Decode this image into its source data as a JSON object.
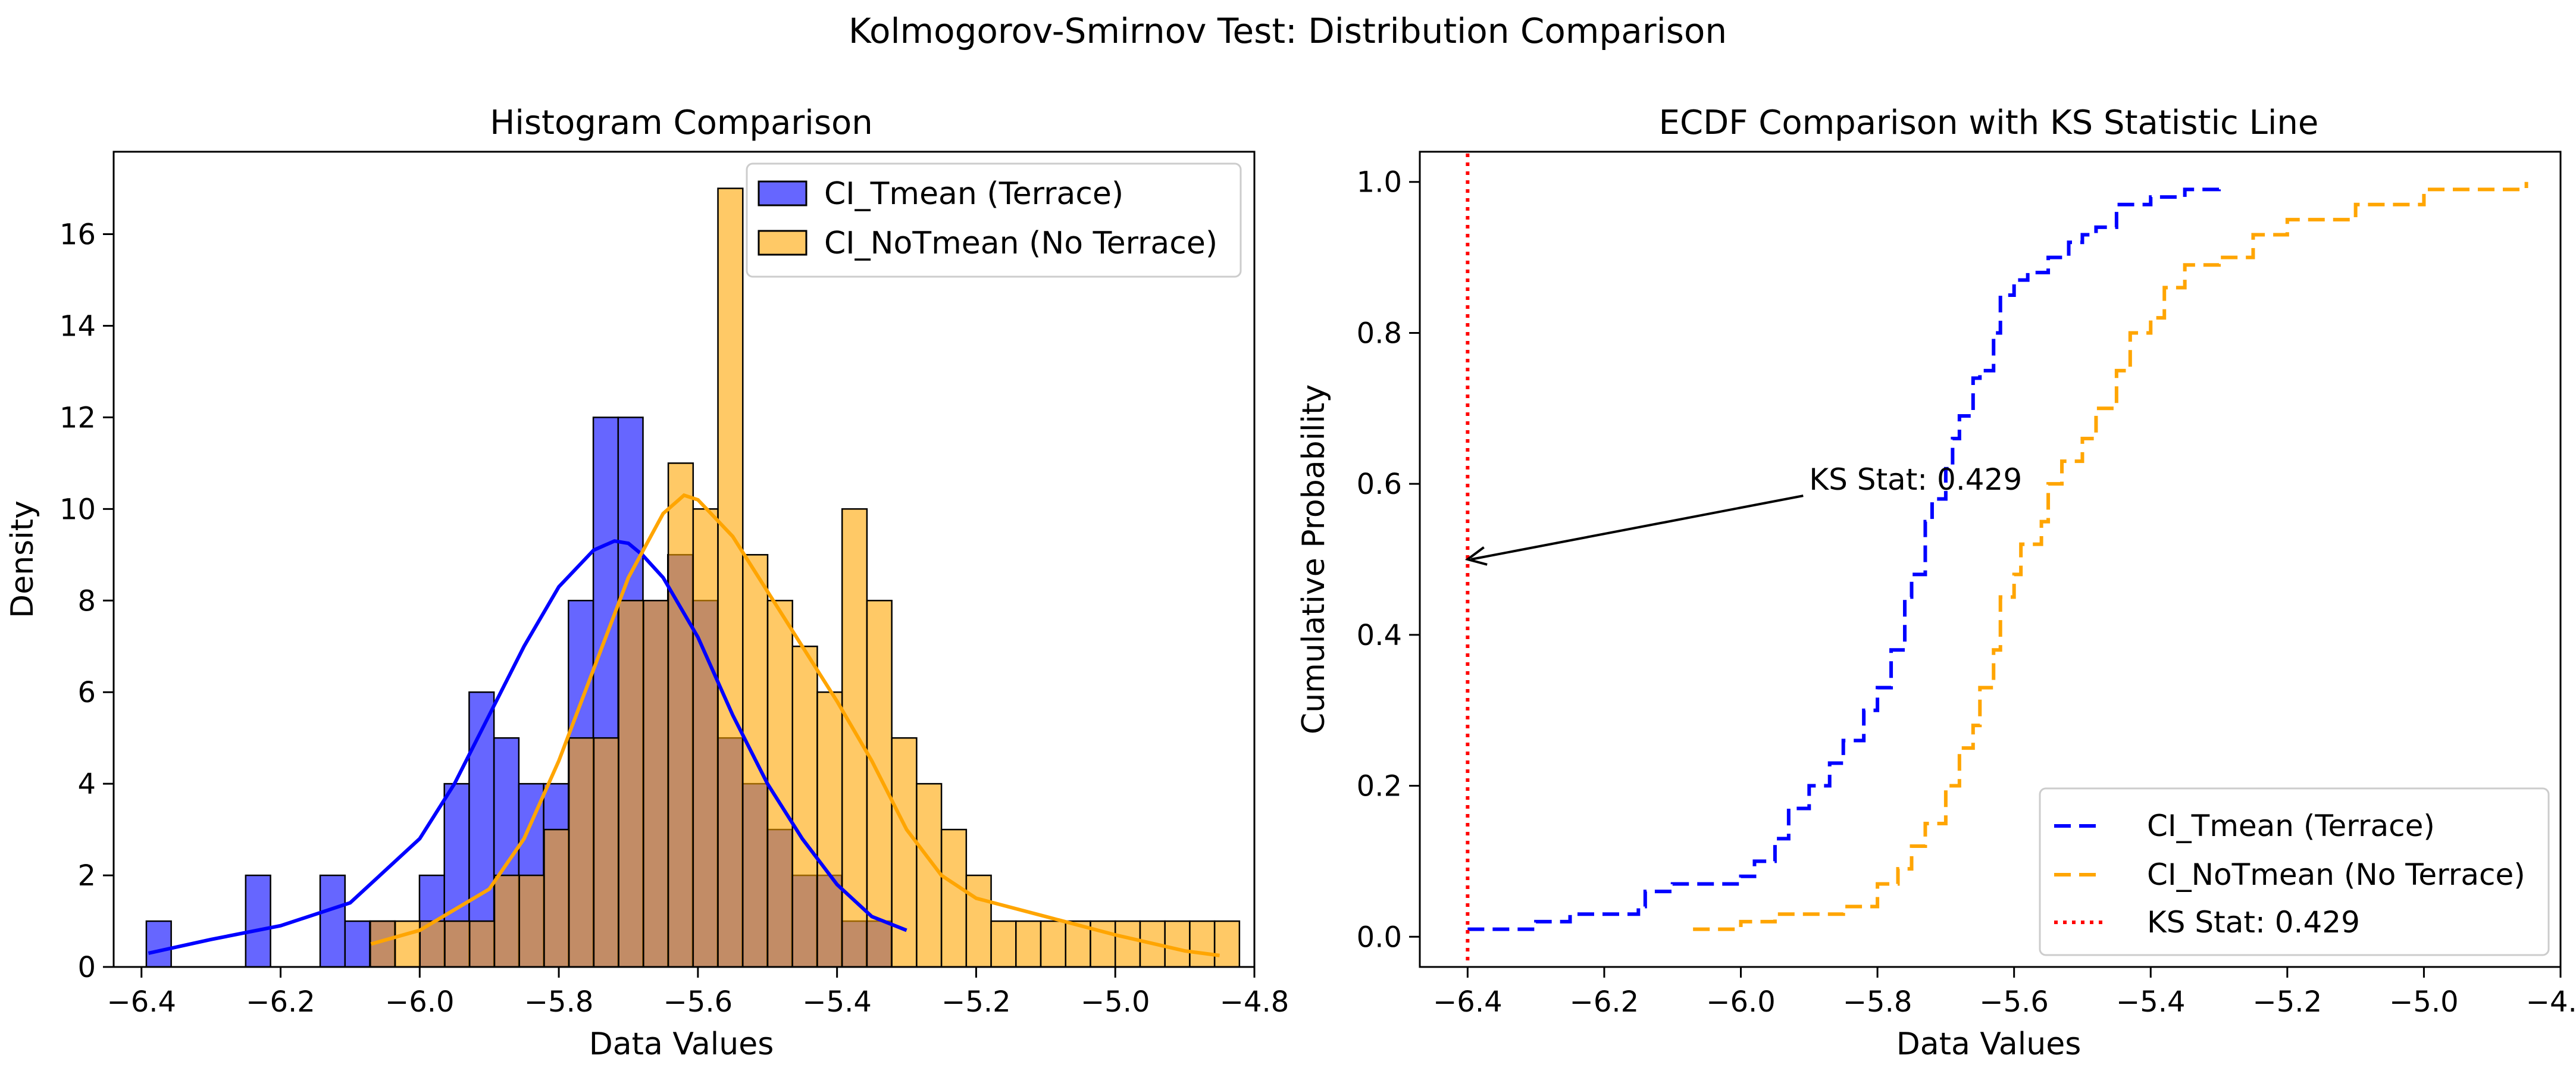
{
  "suptitle": "Kolmogorov-Smirnov Test: Distribution Comparison",
  "colors": {
    "terrace": "#0000ff",
    "no_terrace": "#ffa500",
    "overlap": "#b98a73",
    "ks_line": "#ff0000",
    "edge": "#000000"
  },
  "chart_data": [
    {
      "type": "bar",
      "title": "Histogram Comparison",
      "xlabel": "Data Values",
      "ylabel": "Density",
      "xlim": [
        -6.44,
        -4.8
      ],
      "ylim": [
        0,
        17.8
      ],
      "xticks": [
        -6.4,
        -6.2,
        -6.0,
        -5.8,
        -5.6,
        -5.4,
        -5.2,
        -5.0,
        -4.8
      ],
      "xtick_labels": [
        "−6.4",
        "−6.2",
        "−6.0",
        "−5.8",
        "−5.6",
        "−5.4",
        "−5.2",
        "−5.0",
        "−4.8"
      ],
      "yticks": [
        0,
        2,
        4,
        6,
        8,
        10,
        12,
        14,
        16
      ],
      "legend": "top-right",
      "series": [
        {
          "name": "CI_Tmean (Terrace)",
          "bin_start": -6.393,
          "bin_width": 0.0357,
          "values": [
            1,
            0,
            0,
            0,
            2,
            0,
            0,
            2,
            1,
            1,
            0,
            2,
            4,
            6,
            5,
            4,
            4,
            8,
            12,
            12,
            8,
            9,
            8,
            5,
            4,
            3,
            2,
            2,
            1,
            1
          ],
          "kde_x": [
            -6.39,
            -6.3,
            -6.2,
            -6.1,
            -6.0,
            -5.95,
            -5.9,
            -5.85,
            -5.8,
            -5.75,
            -5.72,
            -5.7,
            -5.68,
            -5.65,
            -5.6,
            -5.55,
            -5.5,
            -5.45,
            -5.4,
            -5.35,
            -5.3
          ],
          "kde_y": [
            0.3,
            0.6,
            0.9,
            1.4,
            2.8,
            4.0,
            5.5,
            7.0,
            8.3,
            9.1,
            9.3,
            9.25,
            9.0,
            8.5,
            7.2,
            5.5,
            4.0,
            2.8,
            1.8,
            1.1,
            0.8
          ]
        },
        {
          "name": "CI_NoTmean (No Terrace)",
          "bin_start": -6.071,
          "bin_width": 0.0357,
          "values": [
            1,
            1,
            1,
            1,
            1,
            2,
            2,
            3,
            5,
            5,
            8,
            8,
            11,
            10,
            17,
            9,
            8,
            7,
            6,
            10,
            8,
            5,
            4,
            3,
            2,
            1,
            1,
            1,
            1,
            1,
            1,
            1,
            1,
            1,
            1
          ],
          "kde_x": [
            -6.07,
            -6.0,
            -5.9,
            -5.85,
            -5.8,
            -5.75,
            -5.7,
            -5.65,
            -5.62,
            -5.6,
            -5.55,
            -5.5,
            -5.45,
            -5.4,
            -5.35,
            -5.3,
            -5.25,
            -5.2,
            -5.1,
            -5.0,
            -4.9,
            -4.85
          ],
          "kde_y": [
            0.5,
            0.8,
            1.7,
            2.8,
            4.5,
            6.5,
            8.5,
            9.9,
            10.3,
            10.2,
            9.4,
            8.2,
            7.0,
            5.8,
            4.5,
            3.0,
            2.0,
            1.5,
            1.1,
            0.7,
            0.35,
            0.25
          ]
        }
      ]
    },
    {
      "type": "line",
      "title": "ECDF Comparison with KS Statistic Line",
      "xlabel": "Data Values",
      "ylabel": "Cumulative Probability",
      "xlim": [
        -6.47,
        -4.8
      ],
      "ylim": [
        -0.04,
        1.04
      ],
      "xticks": [
        -6.4,
        -6.2,
        -6.0,
        -5.8,
        -5.6,
        -5.4,
        -5.2,
        -5.0,
        -4.8
      ],
      "xtick_labels": [
        "−6.4",
        "−6.2",
        "−6.0",
        "−5.8",
        "−5.6",
        "−5.4",
        "−5.2",
        "−5.0",
        "−4.8"
      ],
      "yticks": [
        0.0,
        0.2,
        0.4,
        0.6,
        0.8,
        1.0
      ],
      "ytick_labels": [
        "0.0",
        "0.2",
        "0.4",
        "0.6",
        "0.8",
        "1.0"
      ],
      "legend": "bottom-right",
      "series": [
        {
          "name": "CI_Tmean (Terrace)",
          "x": [
            -6.4,
            -6.3,
            -6.25,
            -6.15,
            -6.14,
            -6.1,
            -6.05,
            -6.0,
            -5.98,
            -5.95,
            -5.93,
            -5.9,
            -5.87,
            -5.85,
            -5.82,
            -5.8,
            -5.78,
            -5.76,
            -5.75,
            -5.73,
            -5.72,
            -5.7,
            -5.69,
            -5.68,
            -5.66,
            -5.65,
            -5.63,
            -5.62,
            -5.6,
            -5.58,
            -5.55,
            -5.52,
            -5.5,
            -5.48,
            -5.45,
            -5.4,
            -5.35,
            -5.3
          ],
          "y": [
            0.01,
            0.02,
            0.03,
            0.04,
            0.06,
            0.07,
            0.07,
            0.08,
            0.1,
            0.13,
            0.17,
            0.2,
            0.23,
            0.26,
            0.3,
            0.33,
            0.38,
            0.45,
            0.48,
            0.55,
            0.58,
            0.62,
            0.66,
            0.69,
            0.74,
            0.75,
            0.8,
            0.85,
            0.87,
            0.88,
            0.9,
            0.92,
            0.93,
            0.94,
            0.97,
            0.98,
            0.99,
            1.0
          ]
        },
        {
          "name": "CI_NoTmean (No Terrace)",
          "x": [
            -6.07,
            -6.0,
            -5.95,
            -5.85,
            -5.8,
            -5.77,
            -5.75,
            -5.73,
            -5.7,
            -5.68,
            -5.66,
            -5.65,
            -5.63,
            -5.62,
            -5.6,
            -5.59,
            -5.56,
            -5.55,
            -5.53,
            -5.5,
            -5.48,
            -5.45,
            -5.43,
            -5.4,
            -5.38,
            -5.35,
            -5.3,
            -5.25,
            -5.2,
            -5.1,
            -5.0,
            -4.85
          ],
          "y": [
            0.01,
            0.02,
            0.03,
            0.04,
            0.07,
            0.09,
            0.12,
            0.15,
            0.2,
            0.25,
            0.28,
            0.33,
            0.38,
            0.45,
            0.48,
            0.52,
            0.55,
            0.6,
            0.63,
            0.66,
            0.7,
            0.75,
            0.8,
            0.82,
            0.86,
            0.89,
            0.9,
            0.93,
            0.95,
            0.97,
            0.99,
            1.0
          ]
        },
        {
          "name": "KS Stat: 0.429",
          "vline_x": -6.4
        }
      ],
      "annotation": {
        "text": "KS Stat: 0.429",
        "xy": [
          -6.4,
          0.5
        ],
        "xytext": [
          -5.9,
          0.6
        ]
      }
    }
  ]
}
